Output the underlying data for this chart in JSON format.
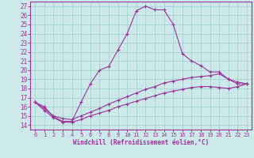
{
  "xlabel": "Windchill (Refroidissement éolien,°C)",
  "background_color": "#cce8e8",
  "grid_color": "#aad4d4",
  "line_color": "#993399",
  "ylim": [
    13.5,
    27.5
  ],
  "xlim": [
    -0.5,
    23.5
  ],
  "yticks": [
    14,
    15,
    16,
    17,
    18,
    19,
    20,
    21,
    22,
    23,
    24,
    25,
    26,
    27
  ],
  "xticks": [
    0,
    1,
    2,
    3,
    4,
    5,
    6,
    7,
    8,
    9,
    10,
    11,
    12,
    13,
    14,
    15,
    16,
    17,
    18,
    19,
    20,
    21,
    22,
    23
  ],
  "line1_x": [
    0,
    1,
    2,
    3,
    4,
    5,
    6,
    7,
    8,
    9,
    10,
    11,
    12,
    13,
    14,
    15,
    16,
    17,
    18,
    19,
    20,
    21,
    22,
    23
  ],
  "line1_y": [
    16.5,
    16.0,
    14.9,
    14.4,
    14.4,
    16.5,
    18.5,
    20.0,
    20.4,
    22.2,
    24.0,
    26.5,
    27.0,
    26.6,
    26.6,
    25.0,
    21.8,
    21.0,
    20.5,
    19.8,
    19.8,
    19.0,
    18.5,
    18.5
  ],
  "line2_x": [
    0,
    1,
    2,
    3,
    4,
    5,
    6,
    7,
    8,
    9,
    10,
    11,
    12,
    13,
    14,
    15,
    16,
    17,
    18,
    19,
    20,
    21,
    22,
    23
  ],
  "line2_y": [
    16.5,
    15.8,
    15.0,
    14.7,
    14.6,
    15.0,
    15.4,
    15.8,
    16.3,
    16.7,
    17.1,
    17.5,
    17.9,
    18.2,
    18.6,
    18.8,
    19.0,
    19.2,
    19.3,
    19.4,
    19.6,
    19.0,
    18.7,
    18.5
  ],
  "line3_x": [
    0,
    1,
    2,
    3,
    4,
    5,
    6,
    7,
    8,
    9,
    10,
    11,
    12,
    13,
    14,
    15,
    16,
    17,
    18,
    19,
    20,
    21,
    22,
    23
  ],
  "line3_y": [
    16.5,
    15.6,
    14.8,
    14.3,
    14.3,
    14.6,
    15.0,
    15.3,
    15.6,
    16.0,
    16.3,
    16.6,
    16.9,
    17.2,
    17.5,
    17.7,
    17.9,
    18.1,
    18.2,
    18.2,
    18.1,
    18.0,
    18.2,
    18.5
  ]
}
